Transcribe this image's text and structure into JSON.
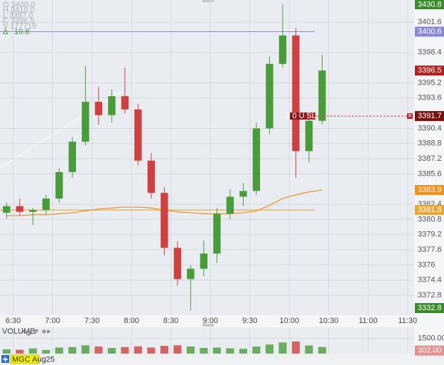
{
  "chart_data": {
    "type": "candlestick",
    "x": [
      "6:20",
      "6:30",
      "6:40",
      "6:50",
      "7:00",
      "7:10",
      "7:20",
      "7:30",
      "7:40",
      "7:50",
      "8:00",
      "8:10",
      "8:20",
      "8:30",
      "8:40",
      "8:50",
      "9:00",
      "9:10",
      "9:20",
      "9:30",
      "9:40",
      "9:50",
      "10:00",
      "10:10",
      "10:20"
    ],
    "open": [
      3381.5,
      3382.2,
      3381.6,
      3381.8,
      3383.0,
      3385.8,
      3389.0,
      3393.2,
      3391.8,
      3393.8,
      3392.4,
      3387.0,
      3383.6,
      3377.8,
      3374.5,
      3375.6,
      3377.2,
      3381.4,
      3383.2,
      3383.8,
      3390.4,
      3397.2,
      3400.2,
      3388.0,
      3391.2
    ],
    "high": [
      3382.6,
      3383.0,
      3382.0,
      3383.4,
      3386.2,
      3389.5,
      3397.0,
      3394.8,
      3394.5,
      3396.8,
      3393.0,
      3387.8,
      3384.2,
      3378.5,
      3376.0,
      3378.6,
      3382.0,
      3384.0,
      3384.6,
      3391.0,
      3398.0,
      3403.5,
      3401.0,
      3391.6,
      3398.2
    ],
    "low": [
      3380.9,
      3381.2,
      3380.2,
      3381.3,
      3382.6,
      3385.2,
      3388.6,
      3390.8,
      3391.0,
      3392.0,
      3386.5,
      3383.0,
      3377.0,
      3373.8,
      3371.2,
      3374.8,
      3376.2,
      3380.8,
      3382.2,
      3383.4,
      3389.8,
      3396.8,
      3385.2,
      3386.8,
      3390.8
    ],
    "close": [
      3382.2,
      3381.6,
      3381.8,
      3383.0,
      3385.8,
      3389.0,
      3393.2,
      3391.8,
      3393.8,
      3392.4,
      3387.0,
      3383.6,
      3377.8,
      3374.5,
      3375.6,
      3377.2,
      3381.4,
      3383.2,
      3383.8,
      3390.4,
      3397.2,
      3400.2,
      3388.0,
      3391.2,
      3396.5
    ],
    "volume": [
      420,
      380,
      510,
      360,
      600,
      640,
      820,
      700,
      560,
      640,
      720,
      600,
      760,
      820,
      700,
      560,
      600,
      520,
      480,
      700,
      900,
      1100,
      1200,
      800,
      650
    ],
    "vwap": [
      3381.2,
      3381.2,
      3381.3,
      3381.3,
      3381.4,
      3381.5,
      3381.7,
      3381.9,
      3382.0,
      3382.1,
      3382.1,
      3382.0,
      3381.8,
      3381.6,
      3381.5,
      3381.4,
      3381.4,
      3381.4,
      3381.5,
      3381.7,
      3382.3,
      3383.0,
      3383.4,
      3383.7,
      3383.9
    ],
    "up_color": "#4a9c3a",
    "down_color": "#d04040",
    "vwap_color": "#f0901e",
    "xlim": [
      "6:20",
      "11:35"
    ],
    "xticks": [
      "6:30",
      "7:00",
      "7:30",
      "8:00",
      "8:30",
      "9:00",
      "9:30",
      "10:00",
      "10:30",
      "11:00",
      "11:30"
    ],
    "ylim": [
      3370.7,
      3403.94
    ],
    "yticks": [
      3401.6,
      3398.4,
      3395.2,
      3393.6,
      3390.4,
      3388.8,
      3387.2,
      3385.6,
      3382.4,
      3380.8,
      3379.2,
      3377.6,
      3376.0,
      3374.4,
      3372.8
    ],
    "grid": true,
    "levels": [
      {
        "value": 3400.6,
        "color": "#8a86d8"
      },
      {
        "value": 3381.8,
        "color": "#e0a020"
      }
    ],
    "price_tags": [
      {
        "value": 3400.6,
        "color": "#8a86d8"
      },
      {
        "value": 3396.5,
        "color": "#b22222"
      },
      {
        "value": 3391.7,
        "color": "#7a0f0f"
      },
      {
        "value": 3383.9,
        "color": "#f0901e"
      },
      {
        "value": 3381.8,
        "color": "#e8a735"
      }
    ],
    "session_high": 3430.8,
    "session_low": 3332.8,
    "order": {
      "value": 3391.7,
      "label": "0 0 U 1",
      "tag": "SL",
      "close": "×"
    },
    "info": [
      "O 3400.0",
      "H 3419.0",
      "L 3387.0",
      "C 3396.5",
      "V 177719"
    ],
    "delta_label": "Δ",
    "delta": 10.8,
    "volume_title": "VOLUME",
    "volume_ylim": [
      0,
      2600
    ],
    "volume_ticks": [
      {
        "value": 1500,
        "label": "1500.00"
      }
    ],
    "last_volume": {
      "value": 302,
      "label": "302.00"
    },
    "instrument": "MGC Aug25"
  }
}
